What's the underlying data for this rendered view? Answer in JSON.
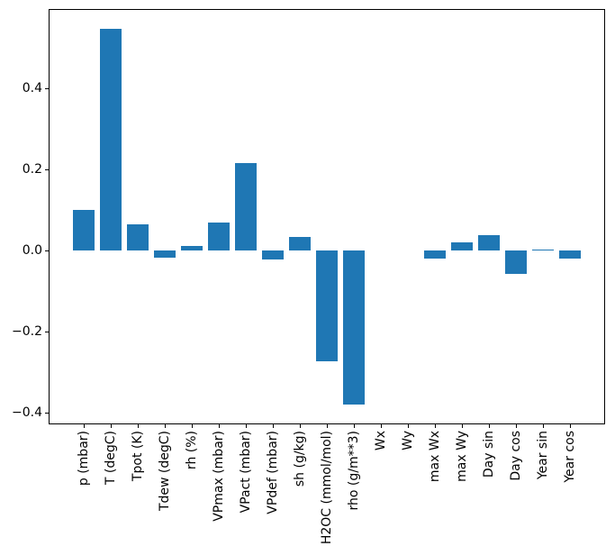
{
  "figure": {
    "background_color": "#ffffff",
    "spine_color": "#000000",
    "tick_color": "#000000",
    "text_color": "#000000"
  },
  "chart_data": {
    "type": "bar",
    "bar_color": "#1f77b4",
    "categories": [
      "p (mbar)",
      "T (degC)",
      "Tpot (K)",
      "Tdew (degC)",
      "rh (%)",
      "VPmax (mbar)",
      "VPact (mbar)",
      "VPdef (mbar)",
      "sh (g/kg)",
      "H2OC (mmol/mol)",
      "rho (g/m**3)",
      "Wx",
      "Wy",
      "max Wx",
      "max Wy",
      "Day sin",
      "Day cos",
      "Year sin",
      "Year cos"
    ],
    "values": [
      0.1,
      0.548,
      0.066,
      -0.018,
      0.012,
      0.069,
      0.217,
      -0.022,
      0.034,
      -0.273,
      -0.379,
      0.0,
      0.0,
      -0.019,
      0.02,
      0.038,
      -0.056,
      0.003,
      -0.019
    ],
    "ylim": [
      -0.428,
      0.596
    ],
    "yticks": [
      {
        "value": 0.4,
        "label": "0.4"
      },
      {
        "value": 0.2,
        "label": "0.2"
      },
      {
        "value": 0.0,
        "label": "0.0"
      },
      {
        "value": -0.2,
        "label": "−0.2"
      },
      {
        "value": -0.4,
        "label": "−0.4"
      }
    ],
    "x_tick_label_rotation": 90,
    "grid": false,
    "legend": false
  }
}
